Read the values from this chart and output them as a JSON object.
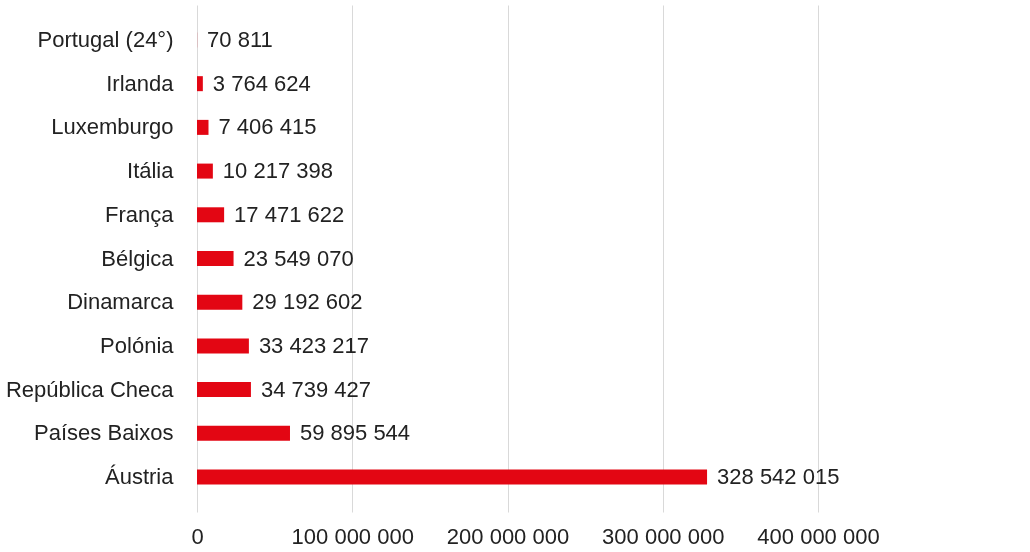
{
  "chart_data": {
    "type": "bar",
    "orientation": "horizontal",
    "categories": [
      "Portugal (24°)",
      "Irlanda",
      "Luxemburgo",
      "Itália",
      "França",
      "Bélgica",
      "Dinamarca",
      "Polónia",
      "República Checa",
      "Países Baixos",
      "Áustria"
    ],
    "values": [
      70811,
      3764624,
      7406415,
      10217398,
      17471622,
      23549070,
      29192602,
      33423217,
      34739427,
      59895544,
      328542015
    ],
    "value_labels": [
      "70 811",
      "3 764 624",
      "7 406 415",
      "10 217 398",
      "17 471 622",
      "23 549 070",
      "29 192 602",
      "33 423 217",
      "34 739 427",
      "59 895 544",
      "328 542 015"
    ],
    "color": "#e30613",
    "xlim": [
      0,
      400000000
    ],
    "xticks": [
      0,
      {
        "value": 100000000,
        "label": "100 000 000"
      },
      {
        "value": 200000000,
        "label": "200 000 000"
      },
      {
        "value": 300000000,
        "label": "300 000 000"
      },
      {
        "value": 400000000,
        "label": "400 000 000"
      }
    ],
    "grid": "x"
  }
}
